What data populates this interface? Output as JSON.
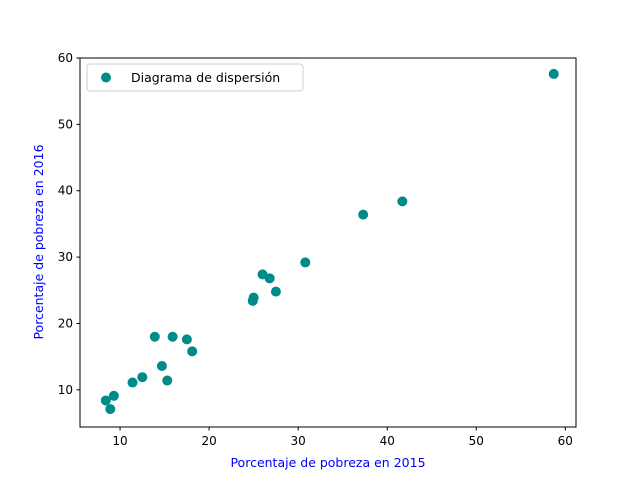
{
  "chart_data": {
    "type": "scatter",
    "title": "",
    "xlabel": "Porcentaje de pobreza en 2015",
    "ylabel": "Porcentaje de pobreza en 2016",
    "xlim": [
      5.5,
      61.2
    ],
    "ylim": [
      4.4,
      60
    ],
    "x_ticks": [
      10,
      20,
      30,
      40,
      50,
      60
    ],
    "y_ticks": [
      10,
      20,
      30,
      40,
      50,
      60
    ],
    "grid": false,
    "legend_position": "top-left",
    "series": [
      {
        "name": "Diagrama de dispersión",
        "color": "#008b8b",
        "points": [
          {
            "x": 8.4,
            "y": 8.4
          },
          {
            "x": 8.9,
            "y": 7.1
          },
          {
            "x": 9.3,
            "y": 9.1
          },
          {
            "x": 11.4,
            "y": 11.1
          },
          {
            "x": 12.5,
            "y": 11.9
          },
          {
            "x": 13.9,
            "y": 18.0
          },
          {
            "x": 14.7,
            "y": 13.6
          },
          {
            "x": 15.3,
            "y": 11.4
          },
          {
            "x": 15.9,
            "y": 18.0
          },
          {
            "x": 17.5,
            "y": 17.6
          },
          {
            "x": 18.1,
            "y": 15.8
          },
          {
            "x": 24.9,
            "y": 23.4
          },
          {
            "x": 25.0,
            "y": 23.9
          },
          {
            "x": 26.0,
            "y": 27.4
          },
          {
            "x": 26.8,
            "y": 26.8
          },
          {
            "x": 27.5,
            "y": 24.8
          },
          {
            "x": 30.8,
            "y": 29.2
          },
          {
            "x": 37.3,
            "y": 36.4
          },
          {
            "x": 41.7,
            "y": 38.4
          },
          {
            "x": 58.7,
            "y": 57.6
          }
        ]
      }
    ]
  }
}
